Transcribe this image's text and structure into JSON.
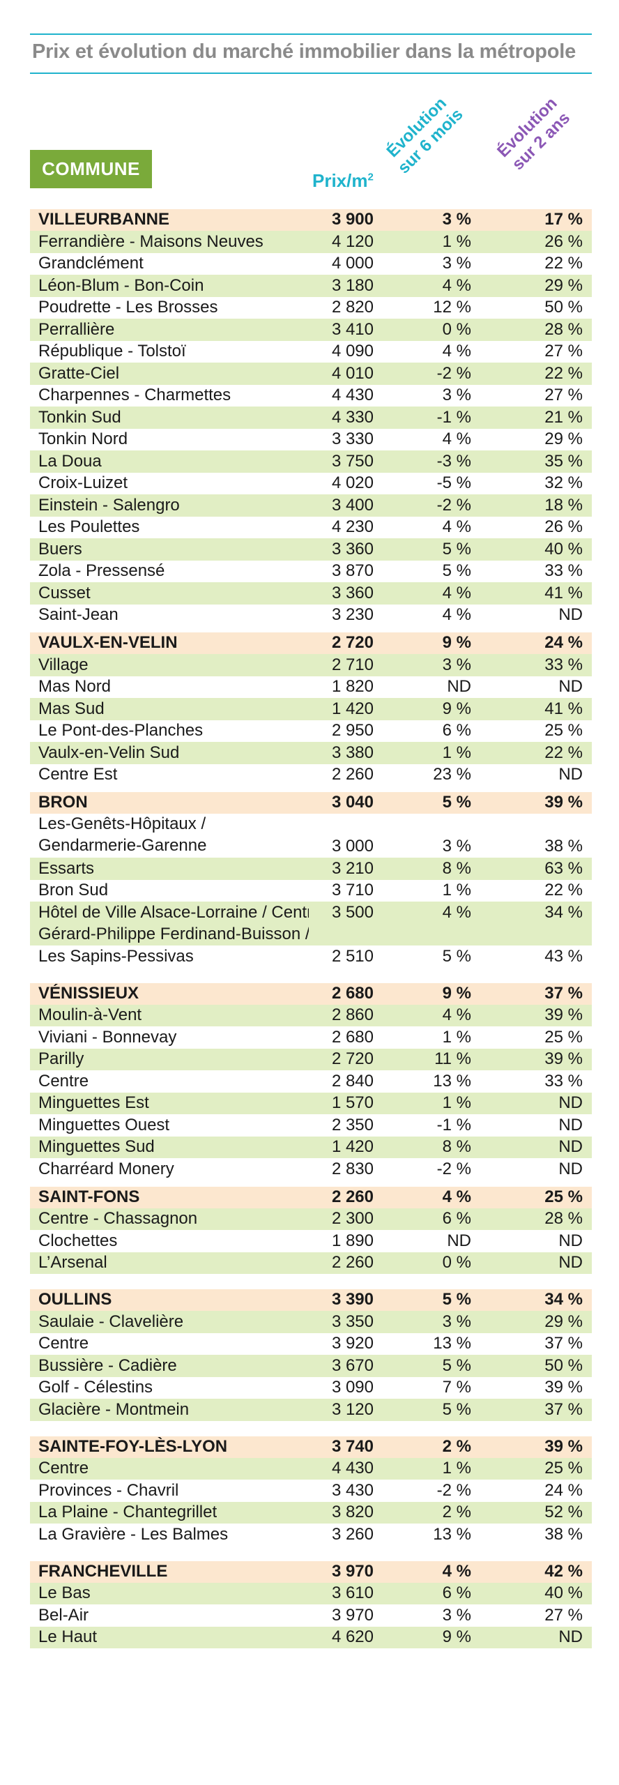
{
  "title": "Prix et évolution du marché immobilier dans la métropole",
  "headers": {
    "commune": "COMMUNE",
    "prix": "Prix/m",
    "prix_sup": "2",
    "evol_6m_l1": "Évolution",
    "evol_6m_l2": "sur 6 mois",
    "evol_2a_l1": "Évolution",
    "evol_2a_l2": "sur 2 ans"
  },
  "colors": {
    "accent": "#1fb3cc",
    "purple": "#8b57b5",
    "green_badge": "#7aaa3a",
    "row_green": "#e1eec4",
    "row_town": "#fce7cf"
  },
  "rows": [
    {
      "type": "town",
      "name": "VILLEURBANNE",
      "prix": "3 900",
      "m6": "3 %",
      "a2": "17 %"
    },
    {
      "type": "g",
      "name": "Ferrandière - Maisons Neuves",
      "prix": "4 120",
      "m6": "1 %",
      "a2": "26 %"
    },
    {
      "type": "w",
      "name": "Grandclément",
      "prix": "4 000",
      "m6": "3 %",
      "a2": "22 %"
    },
    {
      "type": "g",
      "name": "Léon-Blum - Bon-Coin",
      "prix": "3 180",
      "m6": "4 %",
      "a2": "29 %"
    },
    {
      "type": "w",
      "name": "Poudrette - Les Brosses",
      "prix": "2 820",
      "m6": "12 %",
      "a2": "50 %"
    },
    {
      "type": "g",
      "name": "Perrallière",
      "prix": "3 410",
      "m6": "0 %",
      "a2": "28 %"
    },
    {
      "type": "w",
      "name": "République - Tolstoï",
      "prix": "4 090",
      "m6": "4 %",
      "a2": "27 %"
    },
    {
      "type": "g",
      "name": "Gratte-Ciel",
      "prix": "4 010",
      "m6": "-2 %",
      "a2": "22 %"
    },
    {
      "type": "w",
      "name": "Charpennes - Charmettes",
      "prix": "4 430",
      "m6": "3 %",
      "a2": "27 %"
    },
    {
      "type": "g",
      "name": "Tonkin Sud",
      "prix": "4 330",
      "m6": "-1 %",
      "a2": "21 %"
    },
    {
      "type": "w",
      "name": "Tonkin Nord",
      "prix": "3 330",
      "m6": "4 %",
      "a2": "29 %"
    },
    {
      "type": "g",
      "name": "La Doua",
      "prix": "3 750",
      "m6": "-3 %",
      "a2": "35 %"
    },
    {
      "type": "w",
      "name": "Croix-Luizet",
      "prix": "4 020",
      "m6": "-5 %",
      "a2": "32 %"
    },
    {
      "type": "g",
      "name": "Einstein - Salengro",
      "prix": "3 400",
      "m6": "-2 %",
      "a2": "18 %"
    },
    {
      "type": "w",
      "name": "Les Poulettes",
      "prix": "4 230",
      "m6": "4 %",
      "a2": "26 %"
    },
    {
      "type": "g",
      "name": "Buers",
      "prix": "3 360",
      "m6": "5 %",
      "a2": "40 %"
    },
    {
      "type": "w",
      "name": "Zola - Pressensé",
      "prix": "3 870",
      "m6": "5 %",
      "a2": "33 %"
    },
    {
      "type": "g",
      "name": "Cusset",
      "prix": "3 360",
      "m6": "4 %",
      "a2": "41 %"
    },
    {
      "type": "w",
      "name": "Saint-Jean",
      "prix": "3 230",
      "m6": "4 %",
      "a2": "ND"
    },
    {
      "type": "gap"
    },
    {
      "type": "town",
      "name": "VAULX-EN-VELIN",
      "prix": "2 720",
      "m6": "9 %",
      "a2": "24 %"
    },
    {
      "type": "g",
      "name": "Village",
      "prix": "2 710",
      "m6": "3 %",
      "a2": "33 %"
    },
    {
      "type": "w",
      "name": "Mas Nord",
      "prix": "1 820",
      "m6": "ND",
      "a2": "ND"
    },
    {
      "type": "g",
      "name": "Mas Sud",
      "prix": "1 420",
      "m6": "9 %",
      "a2": "41 %"
    },
    {
      "type": "w",
      "name": "Le Pont-des-Planches",
      "prix": "2 950",
      "m6": "6 %",
      "a2": "25 %"
    },
    {
      "type": "g",
      "name": "Vaulx-en-Velin Sud",
      "prix": "3 380",
      "m6": "1 %",
      "a2": "22 %"
    },
    {
      "type": "w",
      "name": "Centre Est",
      "prix": "2 260",
      "m6": "23 %",
      "a2": "ND"
    },
    {
      "type": "gap"
    },
    {
      "type": "town",
      "name": "BRON",
      "prix": "3 040",
      "m6": "5 %",
      "a2": "39 %"
    },
    {
      "type": "w",
      "tall": true,
      "name": "Les-Genêts-Hôpitaux / Gendarmerie-Garenne",
      "prix": "3 000",
      "m6": "3 %",
      "a2": "38 %"
    },
    {
      "type": "g",
      "name": "Essarts",
      "prix": "3 210",
      "m6": "8 %",
      "a2": "63 %"
    },
    {
      "type": "w",
      "name": "Bron Sud",
      "prix": "3 710",
      "m6": "1 %",
      "a2": "22 %"
    },
    {
      "type": "g",
      "name": "Hôtel de Ville Alsace-Lorraine / Centre",
      "prix": "3 500",
      "m6": "4 %",
      "a2": "34 %"
    },
    {
      "type": "g",
      "name": "Gérard-Philippe Ferdinand-Buisson /",
      "prix": "",
      "m6": "",
      "a2": ""
    },
    {
      "type": "w",
      "name": "Les Sapins-Pessivas",
      "prix": "2 510",
      "m6": "5 %",
      "a2": "43 %"
    },
    {
      "type": "gapbig"
    },
    {
      "type": "town",
      "name": "VÉNISSIEUX",
      "prix": "2 680",
      "m6": "9 %",
      "a2": "37 %"
    },
    {
      "type": "g",
      "name": "Moulin-à-Vent",
      "prix": "2 860",
      "m6": "4 %",
      "a2": "39 %"
    },
    {
      "type": "w",
      "name": "Viviani - Bonnevay",
      "prix": "2 680",
      "m6": "1 %",
      "a2": "25 %"
    },
    {
      "type": "g",
      "name": "Parilly",
      "prix": "2 720",
      "m6": "11 %",
      "a2": "39 %"
    },
    {
      "type": "w",
      "name": "Centre",
      "prix": "2 840",
      "m6": "13 %",
      "a2": "33 %"
    },
    {
      "type": "g",
      "name": "Minguettes Est",
      "prix": "1 570",
      "m6": "1 %",
      "a2": "ND"
    },
    {
      "type": "w",
      "name": "Minguettes Ouest",
      "prix": "2 350",
      "m6": "-1 %",
      "a2": "ND"
    },
    {
      "type": "g",
      "name": "Minguettes Sud",
      "prix": "1 420",
      "m6": "8 %",
      "a2": "ND"
    },
    {
      "type": "w",
      "name": "Charréard Monery",
      "prix": "2 830",
      "m6": "-2 %",
      "a2": "ND"
    },
    {
      "type": "gap"
    },
    {
      "type": "town",
      "name": "SAINT-FONS",
      "prix": "2 260",
      "m6": "4 %",
      "a2": "25 %"
    },
    {
      "type": "g",
      "name": "Centre - Chassagnon",
      "prix": "2 300",
      "m6": "6 %",
      "a2": "28 %"
    },
    {
      "type": "w",
      "name": "Clochettes",
      "prix": "1 890",
      "m6": "ND",
      "a2": "ND"
    },
    {
      "type": "g",
      "name": "L’Arsenal",
      "prix": "2 260",
      "m6": "0 %",
      "a2": "ND"
    },
    {
      "type": "gapbig"
    },
    {
      "type": "town",
      "name": "OULLINS",
      "prix": "3 390",
      "m6": "5 %",
      "a2": "34 %"
    },
    {
      "type": "g",
      "name": "Saulaie - Clavelière",
      "prix": "3 350",
      "m6": "3 %",
      "a2": "29 %"
    },
    {
      "type": "w",
      "name": "Centre",
      "prix": "3 920",
      "m6": "13 %",
      "a2": "37 %"
    },
    {
      "type": "g",
      "name": "Bussière - Cadière",
      "prix": "3 670",
      "m6": "5 %",
      "a2": "50 %"
    },
    {
      "type": "w",
      "name": "Golf - Célestins",
      "prix": "3 090",
      "m6": "7 %",
      "a2": "39 %"
    },
    {
      "type": "g",
      "name": "Glacière - Montmein",
      "prix": "3 120",
      "m6": "5 %",
      "a2": "37 %"
    },
    {
      "type": "gapbig"
    },
    {
      "type": "town",
      "name": "SAINTE-FOY-LÈS-LYON",
      "prix": "3 740",
      "m6": "2 %",
      "a2": "39 %"
    },
    {
      "type": "g",
      "name": "Centre",
      "prix": "4 430",
      "m6": "1 %",
      "a2": "25 %"
    },
    {
      "type": "w",
      "name": "Provinces - Chavril",
      "prix": "3 430",
      "m6": "-2 %",
      "a2": "24 %"
    },
    {
      "type": "g",
      "name": "La Plaine - Chantegrillet",
      "prix": "3 820",
      "m6": "2 %",
      "a2": "52 %"
    },
    {
      "type": "w",
      "name": "La Gravière - Les Balmes",
      "prix": "3 260",
      "m6": "13 %",
      "a2": "38 %"
    },
    {
      "type": "gapbig"
    },
    {
      "type": "town",
      "name": "FRANCHEVILLE",
      "prix": "3 970",
      "m6": "4 %",
      "a2": "42 %"
    },
    {
      "type": "g",
      "name": "Le Bas",
      "prix": "3 610",
      "m6": "6 %",
      "a2": "40 %"
    },
    {
      "type": "w",
      "name": "Bel-Air",
      "prix": "3 970",
      "m6": "3 %",
      "a2": "27 %"
    },
    {
      "type": "g",
      "name": "Le Haut",
      "prix": "4 620",
      "m6": "9 %",
      "a2": "ND"
    }
  ]
}
